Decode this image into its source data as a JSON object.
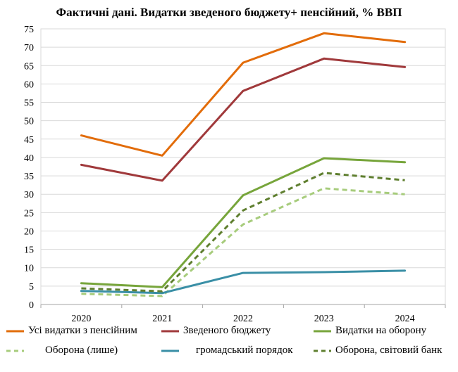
{
  "chart_data": {
    "type": "line",
    "title": "Фактичні дані. Видатки зведеного бюджету+ пенсійний, % ВВП",
    "categories": [
      "2020",
      "2021",
      "2022",
      "2023",
      "2024"
    ],
    "ylim": [
      0,
      75
    ],
    "yticks": [
      0,
      5,
      10,
      15,
      20,
      25,
      30,
      35,
      40,
      45,
      50,
      55,
      60,
      65,
      70,
      75
    ],
    "ytick_labels": [
      "0",
      "5",
      "10",
      "15",
      "20",
      "25",
      "30",
      "35",
      "40",
      "45",
      "50",
      "55",
      "60",
      "65",
      "70",
      "75"
    ],
    "grid": "horizontal",
    "legend_position": "bottom",
    "xlabel": "",
    "ylabel": "",
    "series": [
      {
        "name": "Усі видатки з пенсійним",
        "values": [
          46.0,
          40.5,
          65.8,
          73.8,
          71.4
        ],
        "color": "#E26C0A",
        "dash": "solid"
      },
      {
        "name": "Зведеного бюджету",
        "values": [
          38.0,
          33.7,
          58.1,
          66.9,
          64.6
        ],
        "color": "#A0393B",
        "dash": "solid"
      },
      {
        "name": "Видатки на оборону",
        "values": [
          5.8,
          4.7,
          29.7,
          39.8,
          38.7
        ],
        "color": "#77A53B",
        "dash": "solid"
      },
      {
        "name": "Оборона (лише)",
        "values": [
          2.9,
          2.3,
          21.8,
          31.6,
          30.0
        ],
        "color": "#A7CC7C",
        "dash": "dashed"
      },
      {
        "name": "громадський порядок",
        "values": [
          3.7,
          3.1,
          8.6,
          8.8,
          9.2
        ],
        "color": "#3A8FA6",
        "dash": "solid"
      },
      {
        "name": "Оборона, світовий банк",
        "values": [
          4.4,
          3.6,
          25.6,
          35.8,
          33.8
        ],
        "color": "#5F7F2F",
        "dash": "dashed"
      }
    ]
  }
}
